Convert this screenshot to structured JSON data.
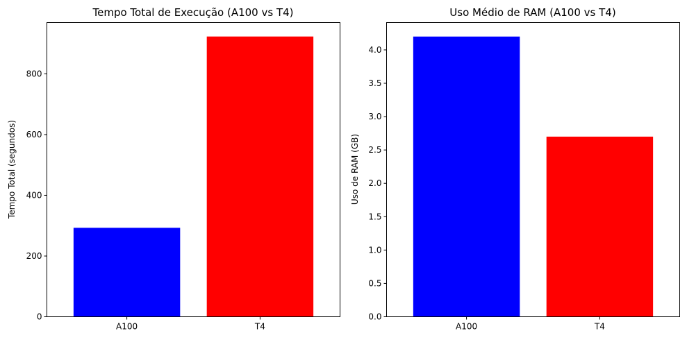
{
  "chart_data": [
    {
      "type": "bar",
      "title": "Tempo Total de Execução (A100 vs T4)",
      "xlabel": "",
      "ylabel": "Tempo Total (segundos)",
      "categories": [
        "A100",
        "T4"
      ],
      "values": [
        293,
        923
      ],
      "colors": [
        "#0000ff",
        "#ff0000"
      ],
      "ylim": [
        0,
        969
      ],
      "yticks": [
        0,
        200,
        400,
        600,
        800
      ],
      "ytick_labels": [
        "0",
        "200",
        "400",
        "600",
        "800"
      ],
      "grid": false,
      "legend": "none"
    },
    {
      "type": "bar",
      "title": "Uso Médio de RAM (A100 vs T4)",
      "xlabel": "",
      "ylabel": "Uso de RAM (GB)",
      "categories": [
        "A100",
        "T4"
      ],
      "values": [
        4.2,
        2.7
      ],
      "colors": [
        "#0000ff",
        "#ff0000"
      ],
      "ylim": [
        0,
        4.41
      ],
      "yticks": [
        0,
        0.5,
        1.0,
        1.5,
        2.0,
        2.5,
        3.0,
        3.5,
        4.0
      ],
      "ytick_labels": [
        "0.0",
        "0.5",
        "1.0",
        "1.5",
        "2.0",
        "2.5",
        "3.0",
        "3.5",
        "4.0"
      ],
      "grid": false,
      "legend": "none"
    }
  ]
}
